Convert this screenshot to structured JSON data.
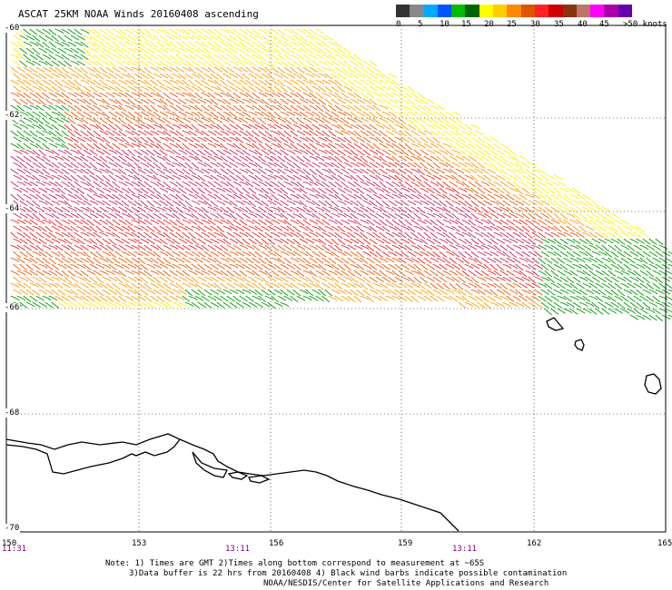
{
  "title": "ASCAT 25KM NOAA Winds 20160408 ascending",
  "colorbar": {
    "colors": [
      "#333333",
      "#888888",
      "#00aaff",
      "#0055ff",
      "#00bb00",
      "#006600",
      "#ffff00",
      "#ffcc00",
      "#ff8800",
      "#dd5500",
      "#ff2222",
      "#cc0000",
      "#883311",
      "#bb7766",
      "#ff00ff",
      "#aa00aa",
      "#6600aa"
    ],
    "labels": [
      "0",
      "5",
      "10",
      "15",
      "20",
      "25",
      "30",
      "35",
      "40",
      "45",
      ">50 knots"
    ]
  },
  "axes": {
    "lat_labels": [
      "-60",
      "-62",
      "-64",
      "-66",
      "-68",
      "-70"
    ],
    "lon_labels": [
      "150",
      "153",
      "156",
      "159",
      "162",
      "165"
    ],
    "time_labels": [
      "11:31",
      "13:11",
      "13:11"
    ]
  },
  "notes": [
    "Note: 1) Times are GMT 2)Times along bottom correspond to measurement at ~65S",
    "3)Data buffer is 22 hrs from 20160408 4) Black wind barbs indicate possible contamination",
    "NOAA/NESDIS/Center for Satellite Applications and Research"
  ],
  "wind_speed_colors": {
    "green": "#009900",
    "yellow": "#ffee00",
    "orange": "#ff9900",
    "dark_orange": "#ee5500",
    "red": "#ee2222",
    "crimson": "#cc2255"
  }
}
